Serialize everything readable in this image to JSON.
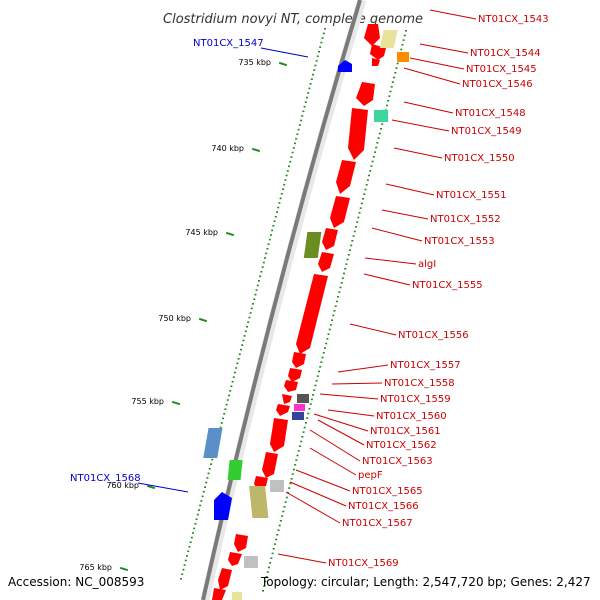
{
  "title": "Clostridium novyi NT, complete genome",
  "accession": "Accession: NC_008593",
  "topology": "Topology: circular; Length: 2,547,720 bp; Genes: 2,427",
  "colors": {
    "cds": "#ff0000",
    "left_label": "#0000cc",
    "right_label": "#cc0000",
    "backbone": "#777777",
    "tick": "#228b22"
  },
  "scale_marks": [
    "735 kbp",
    "740 kbp",
    "745 kbp",
    "750 kbp",
    "755 kbp",
    "760 kbp",
    "765 kbp"
  ],
  "labels_left": [
    "NT01CX_1547",
    "NT01CX_1568"
  ],
  "labels_right": [
    "NT01CX_1543",
    "NT01CX_1544",
    "NT01CX_1545",
    "NT01CX_1546",
    "NT01CX_1548",
    "NT01CX_1549",
    "NT01CX_1550",
    "NT01CX_1551",
    "NT01CX_1552",
    "NT01CX_1553",
    "algI",
    "NT01CX_1555",
    "NT01CX_1556",
    "NT01CX_1557",
    "NT01CX_1558",
    "NT01CX_1559",
    "NT01CX_1560",
    "NT01CX_1561",
    "NT01CX_1562",
    "NT01CX_1563",
    "pepF",
    "NT01CX_1565",
    "NT01CX_1566",
    "NT01CX_1567",
    "NT01CX_1569"
  ]
}
